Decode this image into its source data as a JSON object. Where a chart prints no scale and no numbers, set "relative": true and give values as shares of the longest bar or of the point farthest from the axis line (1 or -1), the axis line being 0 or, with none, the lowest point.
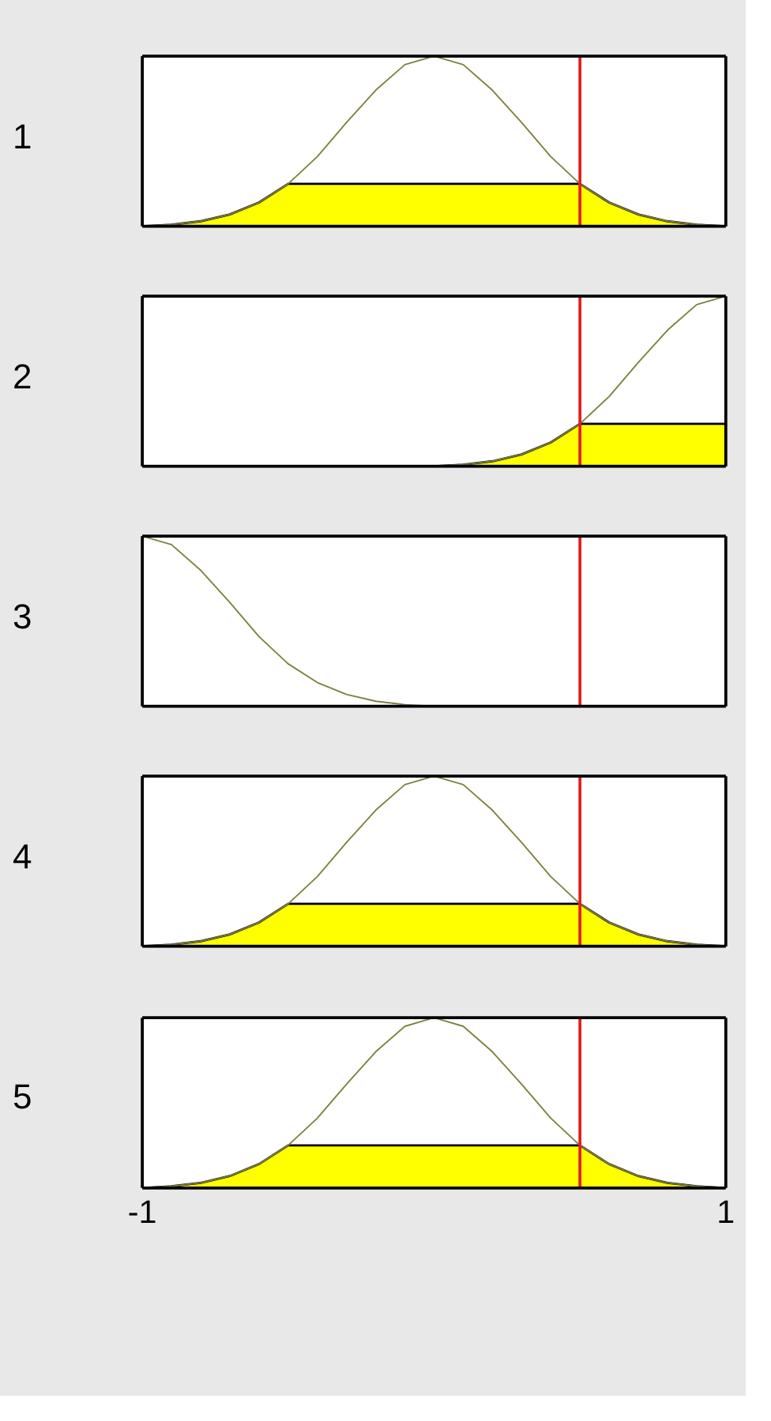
{
  "chart_data": [
    {
      "type": "line",
      "ylabel": "1",
      "relative": true,
      "xlim": [
        -1,
        1
      ],
      "tick_labels": false,
      "marker": "none",
      "x": [
        -1,
        -0.9,
        -0.8,
        -0.7,
        -0.6,
        -0.5,
        -0.4,
        -0.3,
        -0.2,
        -0.1,
        0,
        0.1,
        0.2,
        0.3,
        0.4,
        0.5,
        0.6,
        0.7,
        0.8,
        0.9,
        1
      ],
      "series": [
        {
          "type": "area",
          "color": "#ffff00",
          "values": [
            0,
            0.01,
            0.03,
            0.07,
            0.14,
            0.25,
            0.25,
            0.25,
            0.25,
            0.25,
            0.25,
            0.25,
            0.25,
            0.25,
            0.25,
            0.25,
            0.14,
            0.07,
            0.03,
            0.01,
            0
          ]
        },
        {
          "color": "#808040",
          "values": [
            0,
            0.01,
            0.03,
            0.07,
            0.14,
            0.25,
            0.41,
            0.61,
            0.8,
            0.95,
            1,
            0.95,
            0.8,
            0.61,
            0.41,
            0.25,
            0.14,
            0.07,
            0.03,
            0.01,
            0
          ]
        }
      ],
      "ref_lines": [
        {
          "axis": "x",
          "value": 0.5,
          "color": "#e02020"
        }
      ]
    },
    {
      "type": "line",
      "ylabel": "2",
      "relative": true,
      "xlim": [
        -1,
        1
      ],
      "tick_labels": false,
      "marker": "none",
      "x": [
        -1,
        -0.9,
        -0.8,
        -0.7,
        -0.6,
        -0.5,
        -0.4,
        -0.3,
        -0.2,
        -0.1,
        0,
        0.1,
        0.2,
        0.3,
        0.4,
        0.5,
        0.6,
        0.7,
        0.8,
        0.9,
        1
      ],
      "series": [
        {
          "type": "area",
          "color": "#ffff00",
          "values": [
            0,
            0,
            0,
            0,
            0,
            0,
            0,
            0,
            0,
            0,
            0,
            0.01,
            0.03,
            0.07,
            0.14,
            0.25,
            0.25,
            0.25,
            0.25,
            0.25,
            0.25
          ]
        },
        {
          "color": "#808040",
          "values": [
            0,
            0,
            0,
            0,
            0,
            0,
            0,
            0,
            0,
            0,
            0,
            0.01,
            0.03,
            0.07,
            0.14,
            0.25,
            0.41,
            0.61,
            0.8,
            0.95,
            1
          ]
        }
      ],
      "ref_lines": [
        {
          "axis": "x",
          "value": 0.5,
          "color": "#e02020"
        }
      ]
    },
    {
      "type": "line",
      "ylabel": "3",
      "relative": true,
      "xlim": [
        -1,
        1
      ],
      "tick_labels": false,
      "marker": "none",
      "x": [
        -1,
        -0.9,
        -0.8,
        -0.7,
        -0.6,
        -0.5,
        -0.4,
        -0.3,
        -0.2,
        -0.1,
        0,
        0.1,
        0.2,
        0.3,
        0.4,
        0.5,
        0.6,
        0.7,
        0.8,
        0.9,
        1
      ],
      "series": [
        {
          "color": "#808040",
          "values": [
            1,
            0.95,
            0.8,
            0.61,
            0.41,
            0.25,
            0.14,
            0.07,
            0.03,
            0.01,
            0,
            0,
            0,
            0,
            0,
            0,
            0,
            0,
            0,
            0,
            0
          ]
        }
      ],
      "ref_lines": [
        {
          "axis": "x",
          "value": 0.5,
          "color": "#e02020"
        }
      ]
    },
    {
      "type": "line",
      "ylabel": "4",
      "relative": true,
      "xlim": [
        -1,
        1
      ],
      "tick_labels": false,
      "marker": "none",
      "x": [
        -1,
        -0.9,
        -0.8,
        -0.7,
        -0.6,
        -0.5,
        -0.4,
        -0.3,
        -0.2,
        -0.1,
        0,
        0.1,
        0.2,
        0.3,
        0.4,
        0.5,
        0.6,
        0.7,
        0.8,
        0.9,
        1
      ],
      "series": [
        {
          "type": "area",
          "color": "#ffff00",
          "values": [
            0,
            0.01,
            0.03,
            0.07,
            0.14,
            0.25,
            0.25,
            0.25,
            0.25,
            0.25,
            0.25,
            0.25,
            0.25,
            0.25,
            0.25,
            0.25,
            0.14,
            0.07,
            0.03,
            0.01,
            0
          ]
        },
        {
          "color": "#808040",
          "values": [
            0,
            0.01,
            0.03,
            0.07,
            0.14,
            0.25,
            0.41,
            0.61,
            0.8,
            0.95,
            1,
            0.95,
            0.8,
            0.61,
            0.41,
            0.25,
            0.14,
            0.07,
            0.03,
            0.01,
            0
          ]
        }
      ],
      "ref_lines": [
        {
          "axis": "x",
          "value": 0.5,
          "color": "#e02020"
        }
      ]
    },
    {
      "type": "line",
      "ylabel": "5",
      "relative": true,
      "xlim": [
        -1,
        1
      ],
      "xticks": [
        -1,
        1
      ],
      "tick_labels": "x",
      "marker": "none",
      "x": [
        -1,
        -0.9,
        -0.8,
        -0.7,
        -0.6,
        -0.5,
        -0.4,
        -0.3,
        -0.2,
        -0.1,
        0,
        0.1,
        0.2,
        0.3,
        0.4,
        0.5,
        0.6,
        0.7,
        0.8,
        0.9,
        1
      ],
      "series": [
        {
          "type": "area",
          "color": "#ffff00",
          "values": [
            0,
            0.01,
            0.03,
            0.07,
            0.14,
            0.25,
            0.25,
            0.25,
            0.25,
            0.25,
            0.25,
            0.25,
            0.25,
            0.25,
            0.25,
            0.25,
            0.14,
            0.07,
            0.03,
            0.01,
            0
          ]
        },
        {
          "color": "#808040",
          "values": [
            0,
            0.01,
            0.03,
            0.07,
            0.14,
            0.25,
            0.41,
            0.61,
            0.8,
            0.95,
            1,
            0.95,
            0.8,
            0.61,
            0.41,
            0.25,
            0.14,
            0.07,
            0.03,
            0.01,
            0
          ]
        }
      ],
      "ref_lines": [
        {
          "axis": "x",
          "value": 0.5,
          "color": "#e02020"
        }
      ]
    }
  ]
}
